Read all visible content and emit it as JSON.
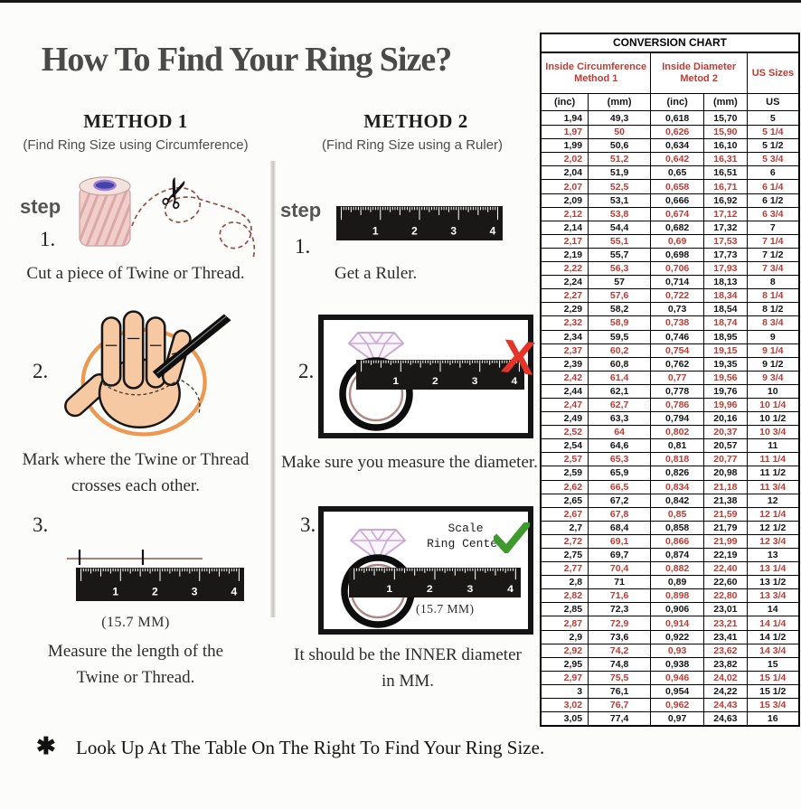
{
  "page": {
    "title": "How To Find Your Ring Size?",
    "footnote_symbol": "✱",
    "footnote": "Look Up At The Table On The Right To Find Your Ring Size."
  },
  "method1": {
    "heading": "METHOD 1",
    "subheading": "(Find Ring Size using Circumference)",
    "step_label": "step",
    "steps": [
      {
        "number": "1.",
        "caption": "Cut a piece of  Twine or Thread."
      },
      {
        "number": "2.",
        "caption": "Mark where the Twine or Thread\ncrosses each other."
      },
      {
        "number": "3.",
        "caption": "Measure the length of the\nTwine or Thread.",
        "measurement": "(15.7 MM)"
      }
    ]
  },
  "method2": {
    "heading": "METHOD 2",
    "subheading": "(Find Ring Size using a Ruler)",
    "step_label": "step",
    "steps": [
      {
        "number": "1.",
        "caption": "Get a Ruler."
      },
      {
        "number": "2.",
        "caption": "Make sure you measure the diameter."
      },
      {
        "number": "3.",
        "caption": "It should be the INNER diameter\nin MM.",
        "scale_note": "Scale\nRing Center",
        "measurement": "(15.7 MM)"
      }
    ]
  },
  "illustrations": {
    "ruler_numbers": [
      "1",
      "2",
      "3",
      "4"
    ],
    "wrong_mark": "X",
    "scissors_glyph": "✂"
  },
  "conversion_chart": {
    "title": "CONVERSION CHART",
    "group_headers": [
      {
        "line1": "Inside Circumference",
        "line2": "Method 1"
      },
      {
        "line1": "Inside Diameter",
        "line2": "Metod 2"
      },
      {
        "line1": "US Sizes"
      }
    ],
    "column_headers": [
      "(inc)",
      "(mm)",
      "(inc)",
      "(mm)",
      "US"
    ],
    "rows": [
      [
        "1,94",
        "49,3",
        "0,618",
        "15,70",
        "5"
      ],
      [
        "1,97",
        "50",
        "0,626",
        "15,90",
        "5 1/4"
      ],
      [
        "1,99",
        "50,6",
        "0,634",
        "16,10",
        "5 1/2"
      ],
      [
        "2,02",
        "51,2",
        "0,642",
        "16,31",
        "5 3/4"
      ],
      [
        "2,04",
        "51,9",
        "0,65",
        "16,51",
        "6"
      ],
      [
        "2,07",
        "52,5",
        "0,658",
        "16,71",
        "6 1/4"
      ],
      [
        "2,09",
        "53,1",
        "0,666",
        "16,92",
        "6 1/2"
      ],
      [
        "2,12",
        "53,8",
        "0,674",
        "17,12",
        "6 3/4"
      ],
      [
        "2,14",
        "54,4",
        "0,682",
        "17,32",
        "7"
      ],
      [
        "2,17",
        "55,1",
        "0,69",
        "17,53",
        "7 1/4"
      ],
      [
        "2,19",
        "55,7",
        "0,698",
        "17,73",
        "7 1/2"
      ],
      [
        "2,22",
        "56,3",
        "0,706",
        "17,93",
        "7 3/4"
      ],
      [
        "2,24",
        "57",
        "0,714",
        "18,13",
        "8"
      ],
      [
        "2,27",
        "57,6",
        "0,722",
        "18,34",
        "8 1/4"
      ],
      [
        "2,29",
        "58,2",
        "0,73",
        "18,54",
        "8 1/2"
      ],
      [
        "2,32",
        "58,9",
        "0,738",
        "18,74",
        "8 3/4"
      ],
      [
        "2,34",
        "59,5",
        "0,746",
        "18,95",
        "9"
      ],
      [
        "2,37",
        "60,2",
        "0,754",
        "19,15",
        "9 1/4"
      ],
      [
        "2,39",
        "60,8",
        "0,762",
        "19,35",
        "9 1/2"
      ],
      [
        "2,42",
        "61,4",
        "0,77",
        "19,56",
        "9 3/4"
      ],
      [
        "2,44",
        "62,1",
        "0,778",
        "19,76",
        "10"
      ],
      [
        "2,47",
        "62,7",
        "0,786",
        "19,96",
        "10 1/4"
      ],
      [
        "2,49",
        "63,3",
        "0,794",
        "20,16",
        "10 1/2"
      ],
      [
        "2,52",
        "64",
        "0,802",
        "20,37",
        "10 3/4"
      ],
      [
        "2,54",
        "64,6",
        "0,81",
        "20,57",
        "11"
      ],
      [
        "2,57",
        "65,3",
        "0,818",
        "20,77",
        "11 1/4"
      ],
      [
        "2,59",
        "65,9",
        "0,826",
        "20,98",
        "11 1/2"
      ],
      [
        "2,62",
        "66,5",
        "0,834",
        "21,18",
        "11 3/4"
      ],
      [
        "2,65",
        "67,2",
        "0,842",
        "21,38",
        "12"
      ],
      [
        "2,67",
        "67,8",
        "0,85",
        "21,59",
        "12 1/4"
      ],
      [
        "2,7",
        "68,4",
        "0,858",
        "21,79",
        "12 1/2"
      ],
      [
        "2,72",
        "69,1",
        "0,866",
        "21,99",
        "12 3/4"
      ],
      [
        "2,75",
        "69,7",
        "0,874",
        "22,19",
        "13"
      ],
      [
        "2,77",
        "70,4",
        "0,882",
        "22,40",
        "13 1/4"
      ],
      [
        "2,8",
        "71",
        "0,89",
        "22,60",
        "13 1/2"
      ],
      [
        "2,82",
        "71,6",
        "0,898",
        "22,80",
        "13 3/4"
      ],
      [
        "2,85",
        "72,3",
        "0,906",
        "23,01",
        "14"
      ],
      [
        "2,87",
        "72,9",
        "0,914",
        "23,21",
        "14 1/4"
      ],
      [
        "2,9",
        "73,6",
        "0,922",
        "23,41",
        "14 1/2"
      ],
      [
        "2,92",
        "74,2",
        "0,93",
        "23,62",
        "14 3/4"
      ],
      [
        "2,95",
        "74,8",
        "0,938",
        "23,82",
        "15"
      ],
      [
        "2,97",
        "75,5",
        "0,946",
        "24,02",
        "15 1/4"
      ],
      [
        "3",
        "76,1",
        "0,954",
        "24,22",
        "15 1/2"
      ],
      [
        "3,02",
        "76,7",
        "0,962",
        "24,43",
        "15 3/4"
      ],
      [
        "3,05",
        "77,4",
        "0,97",
        "24,63",
        "16"
      ]
    ]
  },
  "colors": {
    "accent_red": "#be3b33",
    "bright_red": "#e5352b",
    "check_green": "#3e9a2c",
    "circle_orange": "#ec9851"
  }
}
